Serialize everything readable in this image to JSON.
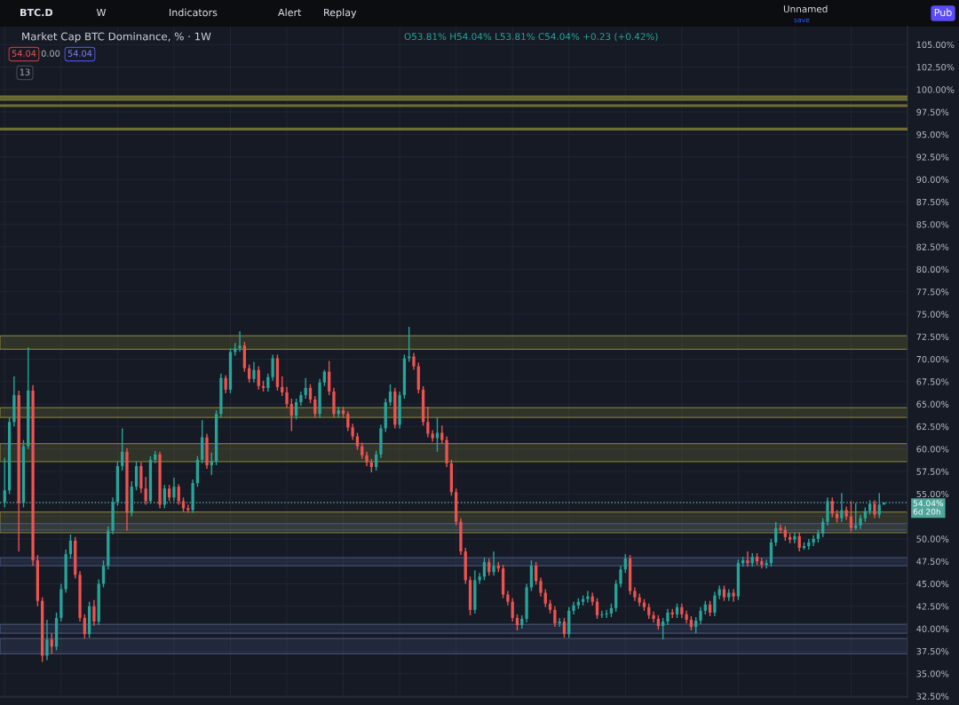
{
  "chart_data": {
    "type": "candlestick",
    "title": "Market Cap BTC Dominance, % · 1W",
    "subtitle": "O53.81% H54.04% L53.81% C54.04% +0.23 (+0.42%)",
    "categories": [
      null,
      null,
      null,
      null,
      null,
      null,
      null,
      null,
      null,
      null,
      null,
      null,
      null,
      null,
      null,
      null,
      null,
      null,
      null,
      null,
      null,
      null,
      null,
      null,
      null,
      null,
      null,
      null,
      null,
      null,
      null,
      null,
      null,
      null,
      null,
      null,
      null,
      null,
      null,
      null,
      null,
      null,
      null,
      null,
      null,
      null,
      null,
      null,
      null,
      null,
      null,
      null,
      null,
      null,
      null,
      null,
      null,
      null,
      null,
      null,
      null,
      null,
      null,
      null,
      null,
      null,
      null,
      null,
      null,
      null,
      null,
      null,
      null,
      null,
      null,
      null,
      null,
      null,
      null,
      null,
      null,
      null,
      null,
      null,
      null,
      null,
      null,
      null,
      null,
      null,
      null,
      null,
      null,
      null,
      null,
      null,
      null,
      null,
      null,
      null,
      null,
      null,
      null,
      null,
      null,
      null,
      null,
      null,
      null,
      null,
      null,
      null,
      null,
      null,
      null,
      null,
      null,
      null,
      null,
      null,
      null,
      null,
      null,
      null,
      null,
      null,
      null,
      null,
      null,
      null,
      null,
      null,
      null,
      null,
      null,
      null,
      null,
      null,
      null,
      null,
      null,
      null,
      null,
      null,
      null,
      null,
      null,
      null,
      null,
      null,
      null,
      null,
      null,
      null,
      null,
      null,
      null,
      null,
      null,
      null,
      null,
      null,
      null,
      null,
      null,
      null,
      null,
      null,
      null,
      null,
      null,
      null,
      null,
      null,
      null,
      null,
      null,
      null,
      null,
      null,
      null,
      null,
      null,
      null,
      null,
      null,
      null,
      null
    ],
    "ohlc": [
      [
        54.1,
        59.0,
        53.5,
        55.4
      ],
      [
        55.4,
        63.5,
        55.0,
        63.0
      ],
      [
        63.0,
        68.1,
        62.5,
        66.0
      ],
      [
        66.0,
        66.5,
        48.6,
        54.0
      ],
      [
        54.0,
        61.0,
        53.5,
        60.3
      ],
      [
        60.3,
        71.3,
        60.0,
        66.5
      ],
      [
        66.5,
        67.1,
        47.0,
        47.6
      ],
      [
        47.6,
        48.2,
        42.5,
        43.1
      ],
      [
        43.1,
        43.5,
        36.3,
        37.0
      ],
      [
        37.0,
        41.0,
        36.5,
        38.8
      ],
      [
        38.8,
        39.5,
        37.2,
        38.0
      ],
      [
        38.0,
        41.8,
        37.6,
        41.2
      ],
      [
        41.2,
        45.0,
        40.8,
        44.4
      ],
      [
        44.4,
        48.8,
        44.0,
        48.3
      ],
      [
        48.3,
        50.5,
        47.8,
        49.8
      ],
      [
        49.8,
        50.2,
        45.6,
        46.0
      ],
      [
        46.0,
        46.4,
        40.8,
        41.2
      ],
      [
        41.2,
        41.6,
        38.9,
        39.4
      ],
      [
        39.4,
        43.0,
        39.0,
        42.5
      ],
      [
        42.5,
        43.2,
        40.3,
        40.8
      ],
      [
        40.8,
        45.5,
        40.4,
        45.0
      ],
      [
        45.0,
        47.6,
        44.6,
        47.0
      ],
      [
        47.0,
        51.4,
        46.6,
        50.9
      ],
      [
        50.9,
        54.6,
        50.5,
        54.1
      ],
      [
        54.1,
        58.6,
        53.7,
        58.1
      ],
      [
        58.1,
        62.3,
        57.6,
        59.7
      ],
      [
        59.7,
        60.1,
        50.9,
        52.9
      ],
      [
        52.9,
        56.4,
        52.5,
        55.8
      ],
      [
        55.8,
        58.6,
        55.4,
        58.1
      ],
      [
        58.1,
        58.5,
        55.1,
        55.6
      ],
      [
        55.6,
        56.9,
        53.8,
        54.2
      ],
      [
        54.2,
        59.2,
        53.9,
        58.8
      ],
      [
        58.8,
        59.8,
        58.4,
        59.4
      ],
      [
        59.4,
        59.7,
        53.4,
        53.8
      ],
      [
        53.8,
        56.0,
        53.4,
        55.6
      ],
      [
        55.6,
        56.0,
        54.2,
        54.6
      ],
      [
        54.6,
        56.8,
        54.2,
        55.8
      ],
      [
        55.8,
        56.1,
        53.8,
        54.2
      ],
      [
        54.2,
        54.6,
        53.0,
        53.4
      ],
      [
        53.4,
        53.8,
        52.9,
        53.2
      ],
      [
        53.2,
        56.6,
        52.9,
        56.2
      ],
      [
        56.2,
        59.2,
        55.8,
        58.8
      ],
      [
        58.8,
        63.2,
        58.4,
        61.3
      ],
      [
        61.3,
        61.7,
        57.8,
        58.2
      ],
      [
        58.2,
        59.6,
        57.1,
        58.6
      ],
      [
        58.6,
        64.3,
        58.2,
        63.9
      ],
      [
        63.9,
        68.4,
        63.5,
        67.9
      ],
      [
        67.9,
        68.2,
        66.2,
        66.6
      ],
      [
        66.6,
        71.2,
        66.2,
        70.8
      ],
      [
        70.8,
        71.8,
        70.4,
        71.2
      ],
      [
        71.2,
        73.1,
        70.8,
        71.5
      ],
      [
        71.5,
        71.9,
        68.6,
        69.0
      ],
      [
        69.0,
        69.4,
        67.4,
        67.8
      ],
      [
        67.8,
        69.7,
        67.4,
        68.8
      ],
      [
        68.8,
        69.2,
        66.6,
        67.0
      ],
      [
        67.0,
        67.6,
        66.4,
        66.8
      ],
      [
        66.8,
        68.4,
        66.4,
        68.0
      ],
      [
        68.0,
        70.5,
        67.6,
        70.1
      ],
      [
        70.1,
        70.5,
        66.5,
        66.9
      ],
      [
        66.9,
        68.1,
        65.9,
        66.3
      ],
      [
        66.3,
        66.9,
        64.6,
        65.0
      ],
      [
        65.0,
        65.6,
        62.0,
        63.7
      ],
      [
        63.7,
        65.6,
        63.3,
        65.2
      ],
      [
        65.2,
        66.4,
        64.8,
        66.0
      ],
      [
        66.0,
        67.9,
        65.6,
        66.8
      ],
      [
        66.8,
        67.2,
        65.1,
        65.5
      ],
      [
        65.5,
        65.9,
        63.5,
        63.9
      ],
      [
        63.9,
        67.8,
        63.5,
        67.4
      ],
      [
        67.4,
        68.8,
        67.0,
        68.6
      ],
      [
        68.6,
        69.8,
        66.0,
        66.4
      ],
      [
        66.4,
        66.8,
        63.5,
        63.9
      ],
      [
        63.9,
        64.7,
        63.5,
        64.3
      ],
      [
        64.3,
        64.7,
        63.5,
        63.9
      ],
      [
        63.9,
        64.2,
        62.0,
        62.4
      ],
      [
        62.4,
        62.8,
        61.0,
        61.4
      ],
      [
        61.4,
        61.8,
        59.9,
        60.3
      ],
      [
        60.3,
        60.7,
        58.9,
        59.3
      ],
      [
        59.3,
        59.7,
        58.1,
        58.5
      ],
      [
        58.5,
        58.9,
        57.4,
        58.0
      ],
      [
        58.0,
        59.8,
        57.6,
        59.4
      ],
      [
        59.4,
        62.7,
        59.0,
        62.3
      ],
      [
        62.3,
        65.6,
        61.9,
        65.2
      ],
      [
        65.2,
        67.2,
        64.8,
        66.4
      ],
      [
        66.4,
        66.8,
        62.3,
        62.7
      ],
      [
        62.7,
        66.4,
        62.3,
        66.0
      ],
      [
        66.0,
        70.5,
        65.6,
        70.1
      ],
      [
        70.1,
        73.6,
        69.7,
        70.3
      ],
      [
        70.3,
        70.7,
        68.8,
        69.2
      ],
      [
        69.2,
        69.6,
        66.2,
        66.6
      ],
      [
        66.6,
        67.0,
        62.6,
        63.0
      ],
      [
        63.0,
        64.7,
        61.3,
        61.7
      ],
      [
        61.7,
        62.1,
        60.8,
        61.2
      ],
      [
        61.2,
        63.5,
        59.7,
        61.8
      ],
      [
        61.8,
        62.6,
        60.6,
        61.0
      ],
      [
        61.0,
        61.4,
        58.0,
        58.4
      ],
      [
        58.4,
        58.8,
        54.8,
        55.2
      ],
      [
        55.2,
        55.6,
        51.5,
        51.9
      ],
      [
        51.9,
        52.3,
        48.2,
        48.6
      ],
      [
        48.6,
        49.0,
        45.0,
        45.4
      ],
      [
        45.4,
        45.8,
        41.5,
        42.1
      ],
      [
        42.1,
        46.5,
        41.7,
        45.4
      ],
      [
        45.4,
        46.2,
        45.0,
        45.8
      ],
      [
        45.8,
        47.9,
        45.4,
        47.4
      ],
      [
        47.4,
        47.8,
        45.9,
        46.3
      ],
      [
        46.3,
        48.6,
        45.9,
        47.0
      ],
      [
        47.0,
        47.4,
        46.3,
        46.7
      ],
      [
        46.7,
        47.1,
        43.4,
        43.8
      ],
      [
        43.8,
        44.2,
        42.6,
        43.0
      ],
      [
        43.0,
        43.4,
        40.8,
        41.2
      ],
      [
        41.2,
        41.6,
        39.8,
        40.4
      ],
      [
        40.4,
        41.5,
        40.0,
        41.1
      ],
      [
        41.1,
        45.0,
        40.7,
        44.6
      ],
      [
        44.6,
        47.6,
        44.2,
        47.0
      ],
      [
        47.0,
        47.4,
        44.9,
        45.3
      ],
      [
        45.3,
        45.7,
        43.6,
        44.0
      ],
      [
        44.0,
        44.4,
        42.4,
        42.8
      ],
      [
        42.8,
        43.2,
        41.7,
        42.1
      ],
      [
        42.1,
        42.5,
        40.2,
        40.6
      ],
      [
        40.6,
        41.2,
        40.2,
        40.8
      ],
      [
        40.8,
        41.2,
        39.0,
        39.4
      ],
      [
        39.4,
        42.4,
        39.0,
        42.0
      ],
      [
        42.0,
        43.0,
        41.6,
        42.6
      ],
      [
        42.6,
        43.4,
        42.2,
        43.0
      ],
      [
        43.0,
        43.7,
        42.6,
        43.3
      ],
      [
        43.3,
        44.2,
        42.9,
        43.6
      ],
      [
        43.6,
        44.0,
        42.6,
        43.0
      ],
      [
        43.0,
        43.4,
        41.1,
        41.5
      ],
      [
        41.5,
        42.0,
        41.2,
        41.6
      ],
      [
        41.6,
        42.1,
        41.2,
        41.7
      ],
      [
        41.7,
        42.8,
        41.3,
        42.3
      ],
      [
        42.3,
        45.4,
        41.9,
        45.0
      ],
      [
        45.0,
        47.0,
        44.6,
        46.6
      ],
      [
        46.6,
        48.3,
        46.2,
        47.8
      ],
      [
        47.8,
        48.2,
        43.8,
        44.2
      ],
      [
        44.2,
        44.6,
        43.1,
        43.5
      ],
      [
        43.5,
        43.9,
        42.5,
        42.9
      ],
      [
        42.9,
        43.3,
        42.0,
        42.4
      ],
      [
        42.4,
        42.8,
        41.1,
        41.5
      ],
      [
        41.5,
        41.9,
        40.7,
        41.1
      ],
      [
        41.1,
        41.5,
        39.9,
        40.3
      ],
      [
        40.3,
        41.2,
        38.8,
        40.8
      ],
      [
        40.8,
        42.2,
        40.4,
        41.8
      ],
      [
        41.8,
        42.2,
        41.2,
        41.6
      ],
      [
        41.6,
        42.8,
        41.2,
        42.4
      ],
      [
        42.4,
        42.8,
        41.2,
        41.6
      ],
      [
        41.6,
        42.0,
        40.6,
        41.0
      ],
      [
        41.0,
        41.4,
        39.8,
        40.2
      ],
      [
        40.2,
        41.3,
        39.5,
        40.9
      ],
      [
        40.9,
        42.4,
        40.5,
        42.0
      ],
      [
        42.0,
        43.1,
        41.6,
        42.7
      ],
      [
        42.7,
        43.1,
        41.4,
        41.8
      ],
      [
        41.8,
        44.1,
        41.4,
        43.7
      ],
      [
        43.7,
        44.8,
        43.3,
        44.4
      ],
      [
        44.4,
        44.8,
        43.1,
        43.5
      ],
      [
        43.5,
        44.4,
        43.1,
        44.0
      ],
      [
        44.0,
        44.4,
        43.0,
        43.6
      ],
      [
        43.6,
        47.7,
        43.2,
        47.3
      ],
      [
        47.3,
        48.0,
        46.9,
        47.6
      ],
      [
        47.6,
        48.6,
        46.9,
        47.3
      ],
      [
        47.3,
        48.4,
        46.9,
        48.0
      ],
      [
        48.0,
        48.4,
        47.1,
        47.5
      ],
      [
        47.5,
        47.9,
        46.7,
        47.1
      ],
      [
        47.1,
        47.7,
        46.7,
        47.3
      ],
      [
        47.3,
        50.0,
        46.9,
        49.6
      ],
      [
        49.6,
        51.9,
        49.2,
        51.2
      ],
      [
        51.2,
        51.6,
        50.6,
        51.0
      ],
      [
        51.0,
        51.4,
        49.8,
        50.2
      ],
      [
        50.2,
        50.6,
        49.5,
        49.9
      ],
      [
        49.9,
        50.7,
        49.5,
        50.3
      ],
      [
        50.3,
        50.7,
        48.6,
        49.0
      ],
      [
        49.0,
        49.6,
        48.8,
        49.2
      ],
      [
        49.2,
        50.0,
        48.8,
        49.6
      ],
      [
        49.6,
        50.4,
        49.2,
        50.0
      ],
      [
        50.0,
        51.0,
        49.6,
        50.6
      ],
      [
        50.6,
        52.3,
        50.2,
        51.9
      ],
      [
        51.9,
        54.6,
        51.5,
        54.2
      ],
      [
        54.2,
        54.6,
        52.4,
        52.8
      ],
      [
        52.8,
        53.2,
        51.8,
        52.3
      ],
      [
        52.3,
        55.1,
        51.9,
        53.2
      ],
      [
        53.2,
        53.6,
        52.1,
        52.5
      ],
      [
        52.5,
        54.2,
        50.8,
        51.2
      ],
      [
        51.2,
        54.0,
        51.0,
        51.5
      ],
      [
        51.5,
        52.7,
        51.1,
        52.3
      ],
      [
        52.3,
        53.5,
        51.9,
        53.1
      ],
      [
        53.1,
        54.3,
        52.7,
        53.9
      ],
      [
        53.9,
        54.3,
        52.3,
        52.7
      ],
      [
        52.7,
        55.1,
        52.3,
        53.81
      ],
      [
        53.81,
        54.04,
        53.81,
        54.04
      ]
    ],
    "colors": [
      "#26a69a",
      "#26a69a",
      "#26a69a",
      "#ef5350",
      "#26a69a",
      "#26a69a",
      "#ef5350",
      "#ef5350",
      "#ef5350",
      "#26a69a",
      "#ef5350",
      "#26a69a",
      "#26a69a",
      "#26a69a",
      "#26a69a",
      "#ef5350",
      "#ef5350",
      "#ef5350",
      "#26a69a",
      "#ef5350",
      "#26a69a",
      "#26a69a",
      "#26a69a",
      "#26a69a",
      "#26a69a",
      "#26a69a",
      "#ef5350",
      "#26a69a",
      "#26a69a",
      "#ef5350",
      "#ef5350",
      "#26a69a",
      "#26a69a",
      "#ef5350",
      "#26a69a",
      "#ef5350",
      "#26a69a",
      "#ef5350",
      "#ef5350",
      "#ef5350",
      "#26a69a",
      "#26a69a",
      "#26a69a",
      "#ef5350",
      "#26a69a",
      "#26a69a",
      "#26a69a",
      "#ef5350",
      "#26a69a",
      "#26a69a",
      "#26a69a",
      "#ef5350",
      "#ef5350",
      "#26a69a",
      "#ef5350",
      "#ef5350",
      "#26a69a",
      "#26a69a",
      "#ef5350",
      "#ef5350",
      "#ef5350",
      "#ef5350",
      "#26a69a",
      "#26a69a",
      "#26a69a",
      "#ef5350",
      "#ef5350",
      "#26a69a",
      "#26a69a",
      "#ef5350",
      "#ef5350",
      "#26a69a",
      "#ef5350",
      "#ef5350",
      "#ef5350",
      "#ef5350",
      "#ef5350",
      "#ef5350",
      "#ef5350",
      "#26a69a",
      "#26a69a",
      "#26a69a",
      "#26a69a",
      "#ef5350",
      "#26a69a",
      "#26a69a",
      "#26a69a",
      "#ef5350",
      "#ef5350",
      "#ef5350",
      "#ef5350",
      "#ef5350",
      "#26a69a",
      "#ef5350",
      "#ef5350",
      "#ef5350",
      "#ef5350",
      "#ef5350",
      "#ef5350",
      "#ef5350",
      "#26a69a",
      "#26a69a",
      "#26a69a",
      "#ef5350",
      "#26a69a",
      "#ef5350",
      "#ef5350",
      "#ef5350",
      "#ef5350",
      "#ef5350",
      "#26a69a",
      "#26a69a",
      "#26a69a",
      "#ef5350",
      "#ef5350",
      "#ef5350",
      "#ef5350",
      "#ef5350",
      "#26a69a",
      "#ef5350",
      "#26a69a",
      "#26a69a",
      "#26a69a",
      "#26a69a",
      "#26a69a",
      "#ef5350",
      "#ef5350",
      "#26a69a",
      "#26a69a",
      "#26a69a",
      "#26a69a",
      "#26a69a",
      "#26a69a",
      "#ef5350",
      "#ef5350",
      "#ef5350",
      "#ef5350",
      "#ef5350",
      "#ef5350",
      "#ef5350",
      "#26a69a",
      "#26a69a",
      "#ef5350",
      "#26a69a",
      "#ef5350",
      "#ef5350",
      "#ef5350",
      "#26a69a",
      "#26a69a",
      "#26a69a",
      "#ef5350",
      "#26a69a",
      "#26a69a",
      "#ef5350",
      "#26a69a",
      "#ef5350",
      "#26a69a",
      "#26a69a",
      "#ef5350",
      "#26a69a",
      "#ef5350",
      "#ef5350",
      "#26a69a",
      "#26a69a",
      "#26a69a",
      "#ef5350",
      "#ef5350",
      "#ef5350",
      "#26a69a",
      "#ef5350",
      "#26a69a",
      "#26a69a",
      "#26a69a",
      "#26a69a",
      "#26a69a",
      "#26a69a",
      "#ef5350",
      "#ef5350",
      "#26a69a",
      "#ef5350",
      "#ef5350",
      "#26a69a",
      "#26a69a",
      "#26a69a",
      "#26a69a",
      "#ef5350",
      "#26a69a",
      "#26a69a"
    ],
    "ylim": [
      32.4,
      107
    ],
    "yticks": [
      {
        "value": 32.5,
        "label": "32.50%"
      },
      {
        "value": 35,
        "label": "35.00%"
      },
      {
        "value": 37.5,
        "label": "37.50%"
      },
      {
        "value": 40,
        "label": "40.00%"
      },
      {
        "value": 42.5,
        "label": "42.50%"
      },
      {
        "value": 45,
        "label": "45.00%"
      },
      {
        "value": 47.5,
        "label": "47.50%"
      },
      {
        "value": 50,
        "label": "50.00%"
      },
      {
        "value": 52.5,
        "label": null
      },
      {
        "value": 55,
        "label": "55.00%"
      },
      {
        "value": 57.5,
        "label": "57.50%"
      },
      {
        "value": 60,
        "label": "60.00%"
      },
      {
        "value": 62.5,
        "label": "62.50%"
      },
      {
        "value": 65,
        "label": "65.00%"
      },
      {
        "value": 67.5,
        "label": "67.50%"
      },
      {
        "value": 70,
        "label": "70.00%"
      },
      {
        "value": 72.5,
        "label": "72.50%"
      },
      {
        "value": 75,
        "label": "75.00%"
      },
      {
        "value": 77.5,
        "label": "77.50%"
      },
      {
        "value": 80,
        "label": "80.00%"
      },
      {
        "value": 82.5,
        "label": "82.50%"
      },
      {
        "value": 85,
        "label": "85.00%"
      },
      {
        "value": 87.5,
        "label": "87.50%"
      },
      {
        "value": 90,
        "label": "90.00%"
      },
      {
        "value": 92.5,
        "label": "92.50%"
      },
      {
        "value": 95,
        "label": "95.00%"
      },
      {
        "value": 97.5,
        "label": "97.50%"
      },
      {
        "value": 100,
        "label": "100.00%"
      },
      {
        "value": 102.5,
        "label": "102.50%"
      },
      {
        "value": 105,
        "label": "105.00%"
      }
    ],
    "tick_labels": "y",
    "grid": true,
    "bands": [
      {
        "axis": "y",
        "from": 71.1,
        "to": 72.6,
        "color": "#8c8c3c"
      },
      {
        "axis": "y",
        "from": 63.5,
        "to": 64.6,
        "color": "#8c8c3c"
      },
      {
        "axis": "y",
        "from": 58.6,
        "to": 60.6,
        "color": "#8c8c3c"
      },
      {
        "axis": "y",
        "from": 50.7,
        "to": 53.0,
        "color": "#8c8c3c"
      },
      {
        "axis": "y",
        "from": 51.0,
        "to": 51.7,
        "color": "#4a5a84"
      },
      {
        "axis": "y",
        "from": 47.0,
        "to": 47.9,
        "color": "#4a5a84"
      },
      {
        "axis": "y",
        "from": 39.5,
        "to": 40.5,
        "color": "#4a5a84"
      },
      {
        "axis": "y",
        "from": 37.2,
        "to": 38.9,
        "color": "#4a5a84"
      }
    ],
    "ref_lines": [
      {
        "axis": "y",
        "value": 99.2,
        "color": "#6e6e34"
      },
      {
        "axis": "y",
        "value": 98.9,
        "color": "#6e6e34"
      },
      {
        "axis": "y",
        "value": 98.2,
        "color": "#6e6e34"
      },
      {
        "axis": "y",
        "value": 95.6,
        "color": "#6e6e34"
      },
      {
        "axis": "y",
        "value": 54.04,
        "label": "54.04%\n6d 20h",
        "color": "#4fa69b",
        "line_style": "dotted"
      }
    ],
    "annotations": [
      "BTC.D",
      "W",
      "Indicators",
      "Alert",
      "Replay",
      "Unnamed",
      "save",
      "Pub",
      "54.04",
      "0.00",
      "54.04",
      "13"
    ]
  }
}
